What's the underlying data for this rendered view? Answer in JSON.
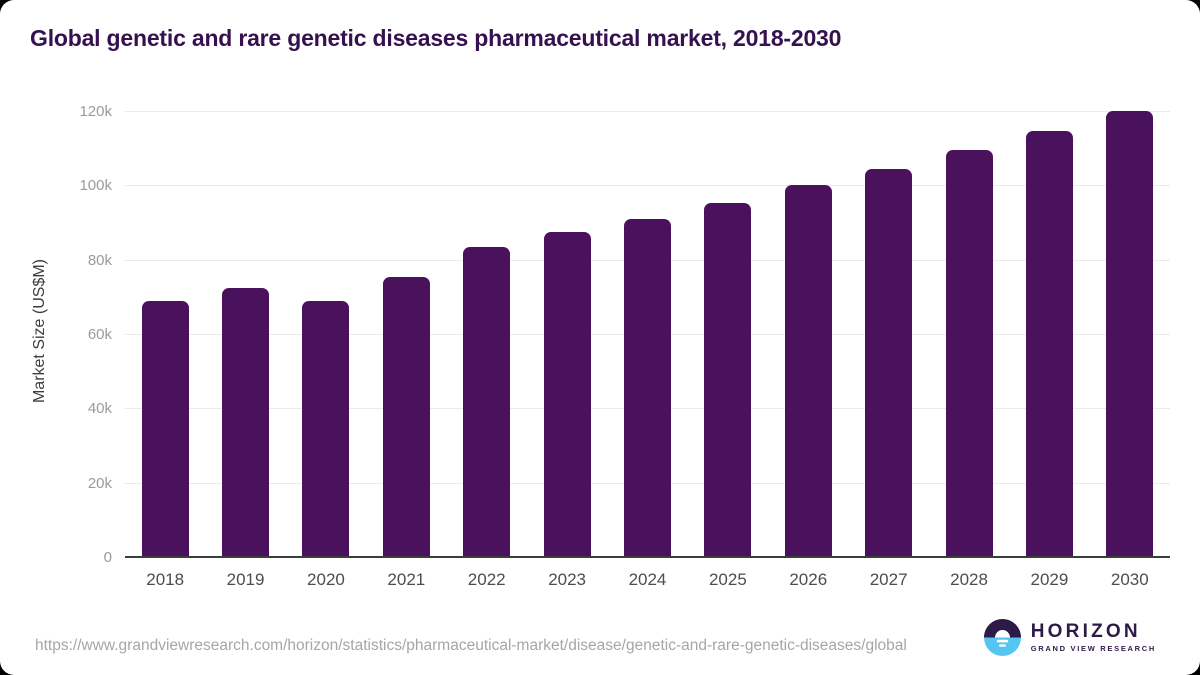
{
  "title": "Global genetic and rare genetic diseases pharmaceutical market, 2018-2030",
  "chart_data": {
    "type": "bar",
    "title": "Global genetic and rare genetic diseases pharmaceutical market, 2018-2030",
    "categories": [
      "2018",
      "2019",
      "2020",
      "2021",
      "2022",
      "2023",
      "2024",
      "2025",
      "2026",
      "2027",
      "2028",
      "2029",
      "2030"
    ],
    "values": [
      69200,
      72600,
      69100,
      75600,
      83600,
      87600,
      91200,
      95500,
      100300,
      104700,
      109700,
      114800,
      120300
    ],
    "xlabel": "",
    "ylabel": "Market Size (US$M)",
    "ylim": [
      0,
      120000
    ],
    "yticks": [
      0,
      20000,
      40000,
      60000,
      80000,
      100000,
      120000
    ],
    "ytick_labels": [
      "0",
      "20k",
      "40k",
      "60k",
      "80k",
      "100k",
      "120k"
    ],
    "grid": true,
    "legend": false,
    "bar_color": "#4a115c"
  },
  "footer": {
    "source_url": "https://www.grandviewresearch.com/horizon/statistics/pharmaceutical-market/disease/genetic-and-rare-genetic-diseases/global",
    "logo_title": "HORIZON",
    "logo_subtitle": "GRAND VIEW RESEARCH"
  },
  "colors": {
    "page_bg": "#000000",
    "card_bg": "#ffffff",
    "title_text": "#35114f",
    "bar": "#4a115c",
    "gridline": "#eaeaea",
    "axis_line": "#3d3d3d",
    "y_tick_text": "#9b9b9b",
    "x_tick_text": "#4d4d4d",
    "url_text": "#a6a6a6",
    "logo_purple": "#2e1a47",
    "logo_blue": "#55c6f2"
  }
}
